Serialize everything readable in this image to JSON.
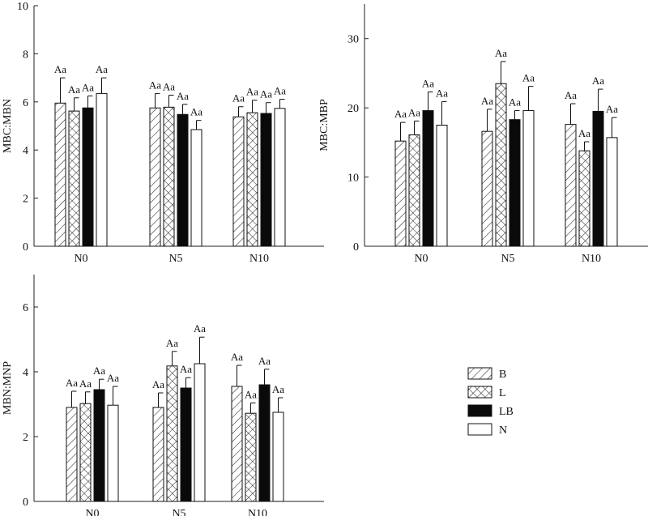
{
  "legend": {
    "entries": [
      {
        "label": "B",
        "pattern": "hatch"
      },
      {
        "label": "L",
        "pattern": "cross"
      },
      {
        "label": "LB",
        "pattern": "solid"
      },
      {
        "label": "N",
        "pattern": "empty"
      }
    ]
  },
  "chart_data": [
    {
      "type": "bar",
      "panel": "top-left",
      "ylabel": "MBC:MBN",
      "ylim": [
        0,
        10
      ],
      "yticks": [
        0,
        2,
        4,
        6,
        8,
        10
      ],
      "categories": [
        "N0",
        "N5",
        "N10"
      ],
      "series": [
        {
          "name": "B",
          "values": [
            5.95,
            5.75,
            5.38
          ],
          "errors": [
            1.05,
            0.6,
            0.42
          ],
          "labels": [
            "Aa",
            "Aa",
            "Aa"
          ]
        },
        {
          "name": "L",
          "values": [
            5.62,
            5.78,
            5.55
          ],
          "errors": [
            0.55,
            0.5,
            0.52
          ],
          "labels": [
            "Aa",
            "Aa",
            "Aa"
          ]
        },
        {
          "name": "LB",
          "values": [
            5.75,
            5.48,
            5.52
          ],
          "errors": [
            0.5,
            0.42,
            0.45
          ],
          "labels": [
            "Aa",
            "Aa",
            "Aa"
          ]
        },
        {
          "name": "N",
          "values": [
            6.35,
            4.85,
            5.73
          ],
          "errors": [
            0.65,
            0.38,
            0.38
          ],
          "labels": [
            "Aa",
            "Aa",
            "Aa"
          ]
        }
      ]
    },
    {
      "type": "bar",
      "panel": "top-right",
      "ylabel": "MBC:MBP",
      "ylim": [
        0,
        35
      ],
      "yticks": [
        0,
        10,
        20,
        30
      ],
      "categories": [
        "N0",
        "N5",
        "N10"
      ],
      "series": [
        {
          "name": "B",
          "values": [
            15.2,
            16.6,
            17.6
          ],
          "errors": [
            2.7,
            3.2,
            3.0
          ],
          "labels": [
            "Aa",
            "Aa",
            "Aa"
          ]
        },
        {
          "name": "L",
          "values": [
            16.1,
            23.5,
            13.8
          ],
          "errors": [
            2.0,
            3.2,
            1.3
          ],
          "labels": [
            "Aa",
            "Aa",
            "Aa"
          ]
        },
        {
          "name": "LB",
          "values": [
            19.6,
            18.3,
            19.5
          ],
          "errors": [
            2.7,
            1.3,
            3.2
          ],
          "labels": [
            "Aa",
            "Aa",
            "Aa"
          ]
        },
        {
          "name": "N",
          "values": [
            17.5,
            19.6,
            15.7
          ],
          "errors": [
            3.4,
            3.5,
            2.9
          ],
          "labels": [
            "Aa",
            "Aa",
            "Aa"
          ]
        }
      ]
    },
    {
      "type": "bar",
      "panel": "bottom-left",
      "ylabel": "MBN:MNP",
      "ylim": [
        0,
        7
      ],
      "yticks": [
        0,
        2,
        4,
        6
      ],
      "categories": [
        "N0",
        "N5",
        "N10"
      ],
      "series": [
        {
          "name": "B",
          "values": [
            2.9,
            2.9,
            3.55
          ],
          "errors": [
            0.5,
            0.45,
            0.65
          ],
          "labels": [
            "Aa",
            "Aa",
            "Aa"
          ]
        },
        {
          "name": "L",
          "values": [
            3.02,
            4.18,
            2.72
          ],
          "errors": [
            0.36,
            0.45,
            0.32
          ],
          "labels": [
            "Aa",
            "Aa",
            "Aa"
          ]
        },
        {
          "name": "LB",
          "values": [
            3.45,
            3.5,
            3.6
          ],
          "errors": [
            0.32,
            0.32,
            0.48
          ],
          "labels": [
            "Aa",
            "Aa",
            "Aa"
          ]
        },
        {
          "name": "N",
          "values": [
            2.97,
            4.25,
            2.75
          ],
          "errors": [
            0.58,
            0.82,
            0.45
          ],
          "labels": [
            "Aa",
            "Aa",
            "Aa"
          ]
        }
      ]
    }
  ]
}
